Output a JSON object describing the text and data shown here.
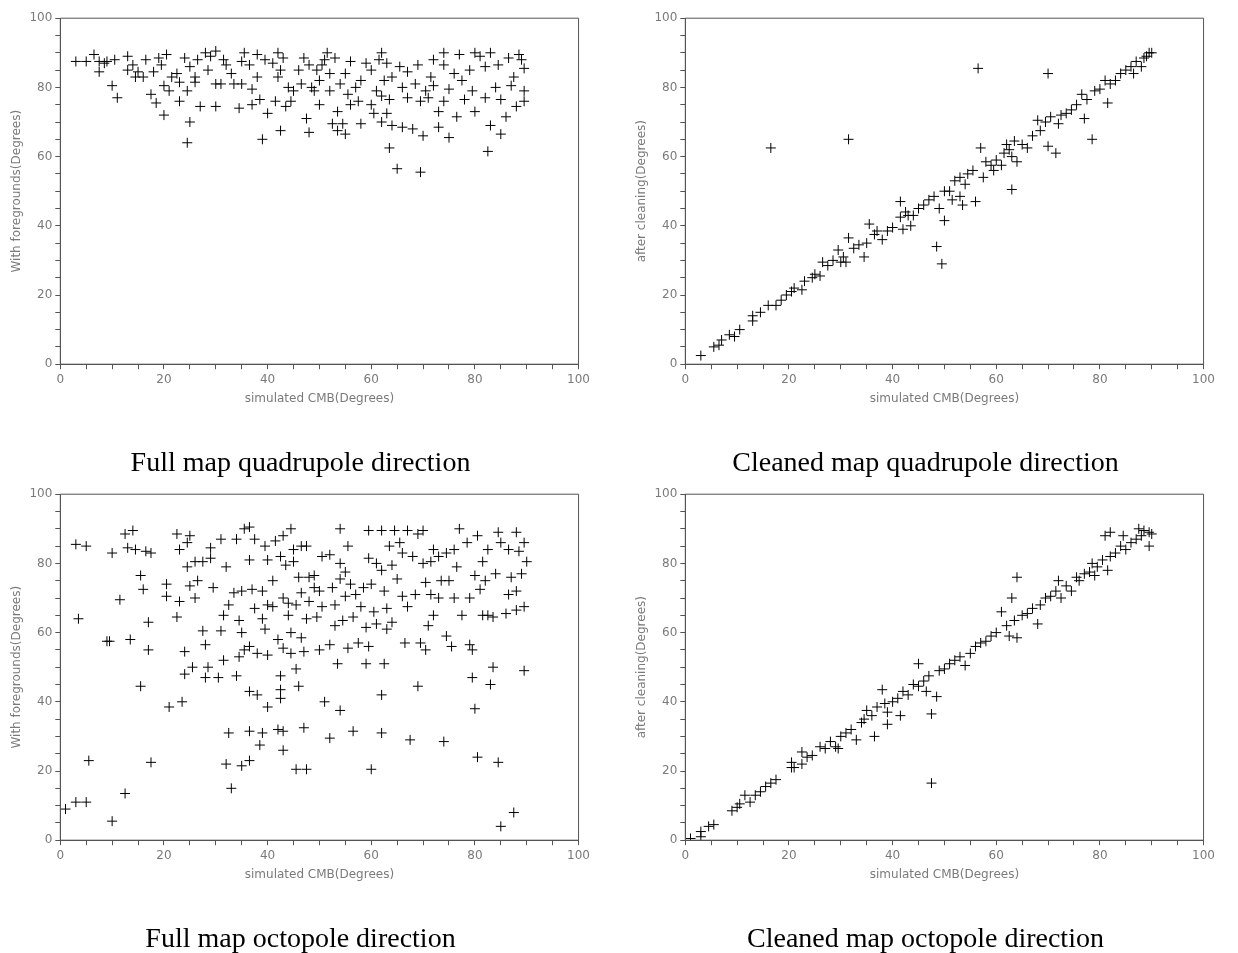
{
  "chart_data": [
    {
      "type": "scatter",
      "title": "Full map quadrupole direction",
      "xlabel": "simulated CMB(Degrees)",
      "ylabel": "With foregrounds(Degrees)",
      "xlim": [
        0,
        100
      ],
      "ylim": [
        0,
        100
      ],
      "xticks": [
        0,
        {
          "value": 5,
          "label": null
        },
        {
          "value": 10,
          "label": null
        },
        {
          "value": 15,
          "label": null
        },
        20,
        {
          "value": 25,
          "label": null
        },
        {
          "value": 30,
          "label": null
        },
        {
          "value": 35,
          "label": null
        },
        40,
        {
          "value": 45,
          "label": null
        },
        {
          "value": 50,
          "label": null
        },
        {
          "value": 55,
          "label": null
        },
        60,
        {
          "value": 65,
          "label": null
        },
        {
          "value": 70,
          "label": null
        },
        {
          "value": 75,
          "label": null
        },
        80,
        {
          "value": 85,
          "label": null
        },
        {
          "value": 90,
          "label": null
        },
        {
          "value": 95,
          "label": null
        },
        100
      ],
      "yticks": [
        0,
        {
          "value": 5,
          "label": null
        },
        {
          "value": 10,
          "label": null
        },
        {
          "value": 15,
          "label": null
        },
        20,
        {
          "value": 25,
          "label": null
        },
        {
          "value": 30,
          "label": null
        },
        {
          "value": 35,
          "label": null
        },
        40,
        {
          "value": 45,
          "label": null
        },
        {
          "value": 50,
          "label": null
        },
        {
          "value": 55,
          "label": null
        },
        60,
        {
          "value": 65,
          "label": null
        },
        {
          "value": 70,
          "label": null
        },
        {
          "value": 75,
          "label": null
        },
        80,
        {
          "value": 85,
          "label": null
        },
        {
          "value": 90,
          "label": null
        },
        {
          "value": 95,
          "label": null
        },
        100
      ],
      "marker": "cross",
      "grid": false,
      "legend": false,
      "series": [
        {
          "color": "#000000",
          "x": [
            3,
            5,
            6.5,
            7.5,
            7.5,
            8.5,
            9,
            10,
            10.5,
            11,
            13,
            13,
            14,
            14.5,
            15,
            16,
            16.5,
            17.5,
            18,
            18.5,
            19,
            19.5,
            20,
            20.5,
            20,
            21,
            21.5,
            22.5,
            23,
            23,
            24,
            24.5,
            24.5,
            25,
            25,
            26,
            26,
            26.5,
            27,
            28,
            28.5,
            29,
            30,
            30,
            30,
            31,
            31.5,
            32,
            33,
            33.5,
            34.5,
            35,
            35.5,
            35,
            36.5,
            37,
            37,
            38,
            38,
            38.5,
            39,
            39.5,
            40,
            41,
            41.5,
            42,
            42,
            42.5,
            42.5,
            43,
            43.5,
            44,
            44.5,
            45,
            46,
            46.5,
            47,
            47.5,
            48,
            48,
            48.5,
            49,
            49.5,
            50,
            50,
            50.5,
            51,
            51.5,
            52,
            52,
            52.5,
            53,
            53.5,
            53.5,
            54,
            54.5,
            55,
            55,
            55.5,
            56,
            56,
            57,
            57.5,
            58,
            58,
            59,
            60,
            60,
            60.5,
            61,
            61.5,
            62,
            62,
            62,
            62.5,
            63,
            63,
            63.5,
            63.5,
            64,
            64,
            65,
            65.5,
            66,
            66,
            67,
            67,
            68,
            68.5,
            69,
            69.5,
            69.5,
            70,
            70.5,
            71,
            71.5,
            72,
            72,
            73,
            73,
            74,
            74,
            74,
            75,
            75,
            76,
            76.5,
            77,
            77.5,
            78,
            79,
            79.5,
            80,
            80,
            81,
            82,
            82,
            82.5,
            83,
            83,
            84,
            84.5,
            85,
            85,
            86,
            86.5,
            87,
            87.5,
            88,
            88.5,
            89,
            89.5,
            89.5,
            89.5
          ],
          "values": [
            87.5,
            87.5,
            89.5,
            84.5,
            87.5,
            87,
            87.5,
            80.5,
            88,
            77,
            89,
            85,
            86.5,
            83,
            84.5,
            83,
            88,
            78,
            84.5,
            75.5,
            88.5,
            86.5,
            80.5,
            89.5,
            72,
            79,
            83,
            84,
            81.5,
            76,
            88.5,
            79,
            64,
            86,
            70,
            83,
            81.5,
            88,
            74.5,
            90,
            85,
            89,
            90.5,
            81,
            74.5,
            81,
            88,
            86.5,
            84,
            81,
            74,
            87.5,
            90,
            81,
            86.5,
            75,
            79.5,
            89.5,
            83,
            76.5,
            65,
            88,
            72.5,
            87,
            76,
            83,
            90,
            85,
            67.5,
            88.5,
            74.5,
            80,
            76,
            79,
            85,
            81,
            88.5,
            71,
            67,
            86.5,
            80,
            79,
            85,
            75,
            82,
            86.5,
            88,
            90,
            84,
            79,
            69.5,
            88.5,
            73,
            67.5,
            81,
            69.5,
            84,
            66.5,
            78,
            87.5,
            75,
            80,
            76,
            69.5,
            82,
            87,
            75,
            85,
            72.5,
            79,
            88,
            70,
            77.5,
            90,
            82,
            87,
            72.5,
            76.5,
            62.5,
            83,
            69,
            56.5,
            86,
            80,
            68.5,
            84.5,
            77,
            68,
            81,
            86.5,
            76,
            55.5,
            66,
            79,
            77,
            83,
            88,
            80.5,
            73,
            68.5,
            86.5,
            76,
            90,
            79.5,
            65.5,
            84,
            71.5,
            89.5,
            82,
            76.5,
            85,
            79,
            73,
            90,
            89,
            86,
            77,
            61.5,
            90,
            69,
            80,
            86.5,
            76.5,
            66.5,
            71.5,
            88.5,
            80.5,
            83,
            74.5,
            89.5,
            88,
            76,
            85.5,
            79
          ]
        }
      ]
    },
    {
      "type": "scatter",
      "title": "Cleaned map quadrupole direction",
      "xlabel": "simulated CMB(Degrees)",
      "ylabel": "after cleaning(Degrees)",
      "xlim": [
        0,
        100
      ],
      "ylim": [
        0,
        100
      ],
      "xticks": [
        0,
        {
          "value": 5,
          "label": null
        },
        {
          "value": 10,
          "label": null
        },
        {
          "value": 15,
          "label": null
        },
        20,
        {
          "value": 25,
          "label": null
        },
        {
          "value": 30,
          "label": null
        },
        {
          "value": 35,
          "label": null
        },
        40,
        {
          "value": 45,
          "label": null
        },
        {
          "value": 50,
          "label": null
        },
        {
          "value": 55,
          "label": null
        },
        60,
        {
          "value": 65,
          "label": null
        },
        {
          "value": 70,
          "label": null
        },
        {
          "value": 75,
          "label": null
        },
        80,
        {
          "value": 85,
          "label": null
        },
        {
          "value": 90,
          "label": null
        },
        {
          "value": 95,
          "label": null
        },
        100
      ],
      "yticks": [
        0,
        {
          "value": 5,
          "label": null
        },
        {
          "value": 10,
          "label": null
        },
        {
          "value": 15,
          "label": null
        },
        20,
        {
          "value": 25,
          "label": null
        },
        {
          "value": 30,
          "label": null
        },
        {
          "value": 35,
          "label": null
        },
        40,
        {
          "value": 45,
          "label": null
        },
        {
          "value": 50,
          "label": null
        },
        {
          "value": 55,
          "label": null
        },
        60,
        {
          "value": 65,
          "label": null
        },
        {
          "value": 70,
          "label": null
        },
        {
          "value": 75,
          "label": null
        },
        80,
        {
          "value": 85,
          "label": null
        },
        {
          "value": 90,
          "label": null
        },
        {
          "value": 95,
          "label": null
        },
        100
      ],
      "marker": "cross",
      "grid": false,
      "legend": false,
      "series": [
        {
          "color": "#000000",
          "x": [
            3,
            5.5,
            6.5,
            7,
            8.5,
            9.5,
            10.5,
            13,
            13,
            14.5,
            16,
            16.5,
            17.5,
            18.5,
            19.5,
            20.5,
            21,
            22.5,
            23,
            24.5,
            25,
            26,
            26.5,
            27.5,
            28.5,
            29.5,
            30,
            30.5,
            31,
            31.5,
            31.5,
            32.5,
            33.5,
            34.5,
            35,
            35.5,
            36.5,
            37,
            38,
            39,
            40,
            41.5,
            41.5,
            42,
            42.5,
            43,
            43.5,
            44,
            45,
            46,
            47,
            48,
            48.5,
            49,
            49.5,
            50,
            50,
            51,
            51.5,
            52,
            53,
            53,
            53.5,
            54,
            54.5,
            55.5,
            56,
            56.5,
            57,
            57.5,
            58,
            59,
            59.5,
            60,
            61,
            61.5,
            62,
            62.5,
            63,
            63,
            63.5,
            64,
            65,
            66,
            67,
            68,
            68.5,
            69.5,
            70,
            70,
            70.5,
            71.5,
            72,
            72.5,
            73.5,
            74.5,
            75.5,
            76.5,
            77,
            77.5,
            78.5,
            79,
            80,
            81,
            81.5,
            82,
            83,
            84,
            85,
            86,
            86.5,
            87,
            88,
            88.5,
            89,
            89.5,
            90
          ],
          "values": [
            2.5,
            5,
            5.5,
            7,
            8.5,
            8,
            10,
            12.5,
            14,
            15,
            17,
            62.5,
            17,
            18.5,
            20,
            21,
            22,
            21.5,
            24,
            25,
            26,
            25.5,
            29.5,
            28.5,
            30,
            33,
            29.5,
            31,
            29.5,
            65,
            36.5,
            33.5,
            34.5,
            31,
            35,
            40.5,
            37.5,
            38.5,
            36,
            38.5,
            39.5,
            47,
            42.5,
            39,
            44,
            43,
            40,
            43,
            45,
            46,
            47.5,
            48.5,
            34,
            45,
            29,
            41.5,
            50,
            50,
            47.5,
            53,
            48.5,
            54,
            46,
            52,
            55,
            56,
            47,
            85.5,
            62.5,
            54,
            58.5,
            57.5,
            56,
            59,
            57.5,
            61,
            63.5,
            62,
            60,
            50.5,
            64.5,
            58.5,
            63.5,
            62.5,
            66,
            70.5,
            67.5,
            70,
            84,
            63,
            71.5,
            61,
            69.5,
            72,
            72.5,
            73.5,
            75,
            78,
            71,
            76.5,
            65,
            79,
            79.5,
            82,
            75.5,
            81,
            82,
            84,
            85,
            86,
            84,
            87.5,
            86,
            88.5,
            89,
            90,
            90
          ]
        }
      ]
    },
    {
      "type": "scatter",
      "title": "Full map octopole direction",
      "xlabel": "simulated CMB(Degrees)",
      "ylabel": "With foregrounds(Degrees)",
      "xlim": [
        0,
        100
      ],
      "ylim": [
        0,
        100
      ],
      "xticks": [
        0,
        {
          "value": 5,
          "label": null
        },
        {
          "value": 10,
          "label": null
        },
        {
          "value": 15,
          "label": null
        },
        20,
        {
          "value": 25,
          "label": null
        },
        {
          "value": 30,
          "label": null
        },
        {
          "value": 35,
          "label": null
        },
        40,
        {
          "value": 45,
          "label": null
        },
        {
          "value": 50,
          "label": null
        },
        {
          "value": 55,
          "label": null
        },
        60,
        {
          "value": 65,
          "label": null
        },
        {
          "value": 70,
          "label": null
        },
        {
          "value": 75,
          "label": null
        },
        80,
        {
          "value": 85,
          "label": null
        },
        {
          "value": 90,
          "label": null
        },
        {
          "value": 95,
          "label": null
        },
        100
      ],
      "yticks": [
        0,
        {
          "value": 5,
          "label": null
        },
        {
          "value": 10,
          "label": null
        },
        {
          "value": 15,
          "label": null
        },
        20,
        {
          "value": 25,
          "label": null
        },
        {
          "value": 30,
          "label": null
        },
        {
          "value": 35,
          "label": null
        },
        40,
        {
          "value": 45,
          "label": null
        },
        {
          "value": 50,
          "label": null
        },
        {
          "value": 55,
          "label": null
        },
        60,
        {
          "value": 65,
          "label": null
        },
        {
          "value": 70,
          "label": null
        },
        {
          "value": 75,
          "label": null
        },
        80,
        {
          "value": 85,
          "label": null
        },
        {
          "value": 90,
          "label": null
        },
        {
          "value": 95,
          "label": null
        },
        100
      ],
      "marker": "cross",
      "grid": false,
      "legend": false,
      "series": [
        {
          "color": "#000000",
          "x": [
            1,
            3,
            3,
            3.5,
            5,
            5,
            5.5,
            9,
            9.5,
            10,
            10,
            11.5,
            12.5,
            12.5,
            13,
            13.5,
            14,
            14.5,
            15.5,
            15.5,
            16,
            16.5,
            17,
            17,
            17.5,
            17.5,
            20.5,
            20.5,
            21,
            22.5,
            22.5,
            23,
            23,
            23.5,
            24,
            24,
            24.5,
            24.5,
            25,
            25,
            25.5,
            26,
            26,
            26.5,
            27.5,
            27.5,
            28,
            28,
            28.5,
            29,
            29,
            29.5,
            30.5,
            31,
            31,
            31.5,
            31.5,
            32,
            32,
            32.5,
            32.5,
            33,
            33.5,
            34,
            34,
            34.5,
            34.5,
            35,
            35,
            35,
            35.5,
            35.5,
            36.5,
            36.5,
            36.5,
            36.5,
            36.5,
            36.5,
            37,
            37.5,
            37.5,
            38,
            38,
            38.5,
            39,
            39,
            39,
            39.5,
            39.5,
            40,
            40,
            40,
            40,
            41,
            41,
            41.5,
            42,
            42,
            42.5,
            42.5,
            42.5,
            42.5,
            43,
            43,
            43,
            43,
            43,
            43.5,
            44,
            44,
            44.5,
            44.5,
            44.5,
            45,
            45,
            45.5,
            45.5,
            45.5,
            46,
            46,
            46.5,
            46.5,
            46.5,
            47,
            47,
            47.5,
            47.5,
            47.5,
            48,
            48,
            49,
            49,
            49.5,
            50,
            50,
            50.5,
            50.5,
            51,
            52,
            52,
            52,
            52.5,
            53,
            53,
            53.5,
            54,
            54,
            54,
            54,
            54.5,
            55,
            55,
            55.5,
            55.5,
            56,
            56.5,
            56.5,
            57,
            57.5,
            58,
            58.5,
            59,
            59,
            59.5,
            59.5,
            59.5,
            60,
            60,
            60.5,
            61,
            61,
            62,
            62,
            62,
            62,
            62.5,
            62.5,
            63,
            63,
            63.5,
            64,
            64,
            64.5,
            65,
            65.5,
            66,
            66,
            66.5,
            67,
            67,
            67.5,
            68,
            68.5,
            69,
            69,
            69.5,
            70,
            70,
            70.5,
            70.5,
            71,
            71.5,
            71.5,
            72,
            72,
            73,
            73,
            73.5,
            74,
            74.5,
            74.5,
            75,
            75.5,
            76,
            76,
            76.5,
            77,
            77.5,
            78.5,
            79,
            79,
            79.5,
            79.5,
            80,
            80,
            80.5,
            80.5,
            81,
            81.5,
            81.5,
            82,
            82.5,
            82.5,
            83,
            83.5,
            83.5,
            84,
            84.5,
            84.5,
            85,
            85,
            86,
            86.5,
            86.5,
            87,
            87.5,
            88,
            88,
            88,
            88.5,
            89,
            89.5,
            89.5,
            89.5,
            90
          ],
          "values": [
            9,
            11,
            85.5,
            64,
            11,
            85,
            23,
            57.5,
            57.5,
            5.5,
            83,
            69.5,
            13.5,
            88.5,
            84.5,
            58,
            89.5,
            84,
            76.5,
            44.5,
            72.5,
            83.5,
            63,
            55,
            83,
            22.5,
            74,
            70.5,
            38.5,
            88.5,
            64.5,
            84,
            69,
            40,
            54.5,
            48,
            86,
            79,
            88,
            73.5,
            50,
            80.5,
            70,
            75,
            80.5,
            60.5,
            56.5,
            47,
            50,
            84.5,
            81.5,
            73,
            47,
            87,
            60.5,
            52,
            65,
            22,
            79,
            68,
            31,
            15,
            71.5,
            87,
            47.5,
            53,
            63.5,
            72,
            21.5,
            60,
            55,
            90,
            90.5,
            81,
            56,
            43,
            31.5,
            23,
            72.5,
            87,
            67,
            54,
            42,
            27.5,
            64,
            72,
            31,
            85,
            61,
            81,
            68,
            53.5,
            38.5,
            75,
            67.5,
            86.5,
            58,
            32,
            82,
            41,
            47.5,
            43.5,
            88,
            70,
            55.5,
            31.5,
            26,
            79.5,
            65,
            68.5,
            90,
            60,
            54,
            84,
            80.5,
            68,
            49.5,
            20.5,
            76,
            44.5,
            85,
            71.5,
            58.5,
            32.5,
            54.5,
            85,
            64,
            20.5,
            69,
            76,
            76.5,
            73,
            64.5,
            55,
            72,
            82,
            67.5,
            40,
            82.5,
            56.5,
            29.5,
            73,
            68,
            62,
            51,
            75.5,
            80,
            90,
            37.5,
            63.5,
            70.5,
            77.5,
            85,
            55.5,
            74,
            64.5,
            31.5,
            71,
            57,
            67.5,
            73,
            61.5,
            51,
            81.5,
            56,
            89.5,
            20.5,
            74,
            66,
            62.5,
            80,
            78,
            89.5,
            42,
            31,
            72,
            51,
            67,
            61,
            85,
            79.5,
            63,
            89.5,
            75.5,
            86,
            83,
            70.5,
            57,
            89.5,
            67.5,
            29,
            82,
            71,
            88.5,
            44.5,
            57,
            89.5,
            80,
            74.5,
            55,
            62,
            80.5,
            71,
            65,
            84,
            70,
            82,
            75,
            28.5,
            83,
            59,
            75,
            56,
            84,
            70,
            79,
            90,
            65,
            86,
            56.5,
            70,
            55,
            47,
            76.5,
            38,
            88,
            24,
            72.5,
            80.5,
            65,
            75,
            84,
            65,
            45,
            50,
            64.5,
            77,
            22.5,
            89,
            4,
            86,
            65.5,
            84,
            71,
            76,
            8,
            89,
            72,
            66.5,
            83.5,
            77,
            49,
            86,
            67.5,
            80.5
          ]
        }
      ]
    },
    {
      "type": "scatter",
      "title": "Cleaned map octopole direction",
      "xlabel": "simulated CMB(Degrees)",
      "ylabel": "after cleaning(Degrees)",
      "xlim": [
        0,
        100
      ],
      "ylim": [
        0,
        100
      ],
      "xticks": [
        0,
        {
          "value": 5,
          "label": null
        },
        {
          "value": 10,
          "label": null
        },
        {
          "value": 15,
          "label": null
        },
        20,
        {
          "value": 25,
          "label": null
        },
        {
          "value": 30,
          "label": null
        },
        {
          "value": 35,
          "label": null
        },
        40,
        {
          "value": 45,
          "label": null
        },
        {
          "value": 50,
          "label": null
        },
        {
          "value": 55,
          "label": null
        },
        60,
        {
          "value": 65,
          "label": null
        },
        {
          "value": 70,
          "label": null
        },
        {
          "value": 75,
          "label": null
        },
        80,
        {
          "value": 85,
          "label": null
        },
        {
          "value": 90,
          "label": null
        },
        {
          "value": 95,
          "label": null
        },
        100
      ],
      "yticks": [
        0,
        {
          "value": 5,
          "label": null
        },
        {
          "value": 10,
          "label": null
        },
        {
          "value": 15,
          "label": null
        },
        20,
        {
          "value": 25,
          "label": null
        },
        {
          "value": 30,
          "label": null
        },
        {
          "value": 35,
          "label": null
        },
        40,
        {
          "value": 45,
          "label": null
        },
        {
          "value": 50,
          "label": null
        },
        {
          "value": 55,
          "label": null
        },
        60,
        {
          "value": 65,
          "label": null
        },
        {
          "value": 70,
          "label": null
        },
        {
          "value": 75,
          "label": null
        },
        80,
        {
          "value": 85,
          "label": null
        },
        {
          "value": 90,
          "label": null
        },
        {
          "value": 95,
          "label": null
        },
        100
      ],
      "marker": "cross",
      "grid": false,
      "legend": false,
      "series": [
        {
          "color": "#000000",
          "x": [
            1,
            3,
            3,
            4.5,
            5.5,
            9,
            10,
            10.5,
            11.5,
            12.5,
            13.5,
            14.5,
            15.5,
            16.5,
            17.5,
            20.5,
            20.5,
            21,
            22.5,
            22.5,
            23.5,
            24.5,
            26,
            27,
            28,
            29,
            29.5,
            30,
            31,
            32,
            33,
            34,
            34.5,
            35,
            36,
            36.5,
            37,
            38,
            38.5,
            39,
            39,
            40,
            41,
            41.5,
            42,
            43,
            44,
            45,
            45,
            46,
            46.5,
            47,
            47.5,
            47.5,
            48.5,
            49,
            50,
            51,
            52,
            53,
            54,
            55,
            56,
            57,
            58,
            59,
            60,
            61,
            62,
            62.5,
            63,
            63.5,
            64,
            64,
            65,
            66,
            67,
            68,
            68.5,
            69.5,
            70.5,
            71.5,
            72,
            72.5,
            73.5,
            74.5,
            75.5,
            76,
            77,
            78,
            78.5,
            79,
            79.5,
            80.5,
            81,
            81.5,
            82,
            82,
            83,
            84,
            84.5,
            85,
            86,
            87,
            87.5,
            88,
            88.5,
            89.5,
            89.5,
            90
          ],
          "values": [
            0.5,
            1,
            2.5,
            4,
            4.5,
            8.5,
            9.5,
            10.5,
            13,
            11,
            13,
            14,
            15.5,
            16.5,
            17.5,
            22.5,
            21,
            21,
            25.5,
            22,
            24,
            24.5,
            27,
            26.5,
            28.5,
            27,
            26.5,
            30,
            31,
            32,
            29,
            34,
            35,
            37.5,
            36,
            30,
            38.5,
            43.5,
            39.5,
            33.5,
            37,
            40,
            41,
            36,
            43,
            42,
            45,
            44.5,
            51,
            46,
            43,
            47.5,
            36.5,
            16.5,
            41.5,
            49,
            49.5,
            51,
            52,
            53,
            50.5,
            54,
            56,
            57,
            57.5,
            59,
            60,
            66,
            62,
            59,
            70,
            63.5,
            76,
            58.5,
            65,
            65.5,
            67,
            62.5,
            68,
            70,
            70.5,
            72,
            75,
            70,
            73.5,
            72,
            76,
            75,
            77,
            77.5,
            80,
            76.5,
            79,
            81,
            88,
            78,
            82,
            89,
            83,
            85,
            88,
            84,
            86,
            87,
            90,
            88,
            89.5,
            85,
            89,
            88.5
          ]
        }
      ]
    }
  ]
}
